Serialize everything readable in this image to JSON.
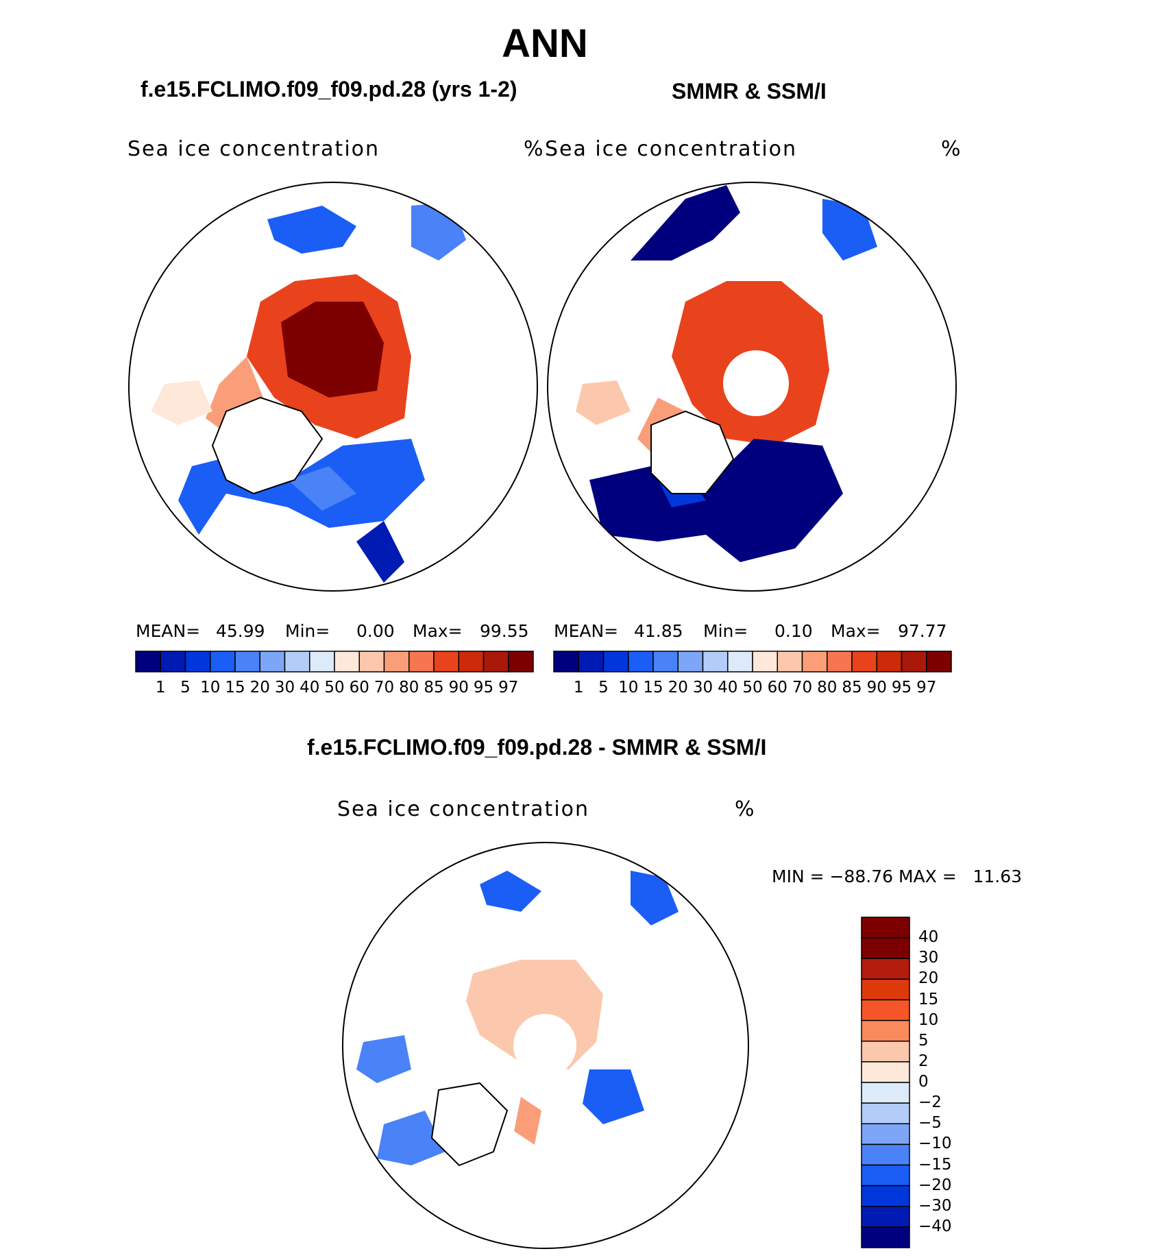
{
  "main_title": "ANN",
  "panels": [
    {
      "title": "f.e15.FCLIMO.f09_f09.pd.28 (yrs 1-2)",
      "variable": "Sea ice concentration",
      "units": "%",
      "stats": {
        "mean_label": "MEAN=",
        "mean": "45.99",
        "min_label": "Min=",
        "min": "0.00",
        "max_label": "Max=",
        "max": "99.55"
      }
    },
    {
      "title": "SMMR & SSM/I",
      "variable": "Sea ice concentration",
      "units": "%",
      "stats": {
        "mean_label": "MEAN=",
        "mean": "41.85",
        "min_label": "Min=",
        "min": "0.10",
        "max_label": "Max=",
        "max": "97.77"
      }
    }
  ],
  "diff_panel": {
    "title": "f.e15.FCLIMO.f09_f09.pd.28 - SMMR & SSM/I",
    "variable": "Sea ice concentration",
    "units": "%",
    "minmax": "MIN = −88.76 MAX =   11.63"
  },
  "colorbar_levels": [
    "1",
    "5",
    "10",
    "15",
    "20",
    "30",
    "40",
    "50",
    "60",
    "70",
    "80",
    "85",
    "90",
    "95",
    "97"
  ],
  "colorbar_colors": [
    "#00007f",
    "#001bb4",
    "#0037dd",
    "#1a5ef5",
    "#4a82f7",
    "#7ea6f8",
    "#b3ccf8",
    "#dceaf9",
    "#fde8d9",
    "#fcc8ad",
    "#fa9e7a",
    "#f6764f",
    "#e9431d",
    "#cc2a09",
    "#a8190a",
    "#7d0000"
  ],
  "diff_levels": [
    "40",
    "30",
    "20",
    "15",
    "10",
    "5",
    "2",
    "0",
    "−2",
    "−5",
    "−10",
    "−15",
    "−20",
    "−30",
    "−40"
  ],
  "diff_colors": [
    "#7d0000",
    "#b41d0d",
    "#dd3a0c",
    "#f65527",
    "#f98a5c",
    "#fcc8ad",
    "#fde8d9",
    "#dceaf9",
    "#b3ccf8",
    "#7ea6f8",
    "#4a82f7",
    "#1a5ef5",
    "#0037dd",
    "#001bb4",
    "#00007f"
  ]
}
